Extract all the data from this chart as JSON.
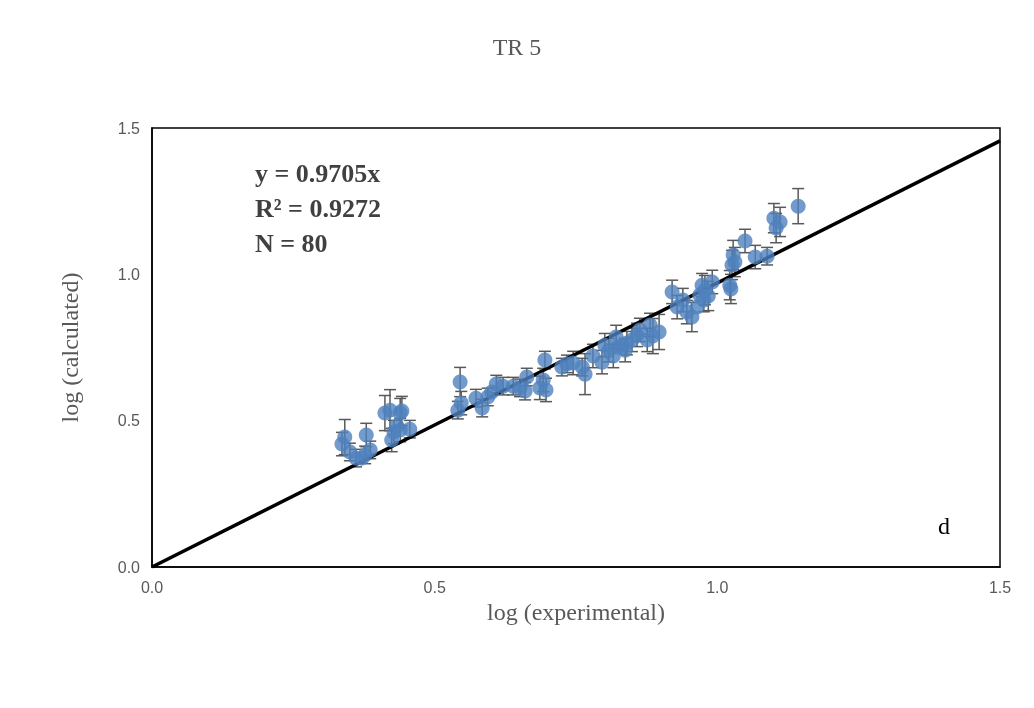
{
  "chart_data": {
    "type": "scatter",
    "title": "TR 5",
    "xlabel": "log (experimental)",
    "ylabel": "log (calculated)",
    "xlim": [
      0,
      1.5
    ],
    "ylim": [
      0,
      1.5
    ],
    "xticks": [
      {
        "value": 0,
        "label": "0.0"
      },
      {
        "value": 0.5,
        "label": "0.5"
      },
      {
        "value": 1,
        "label": "1.0"
      },
      {
        "value": 1.5,
        "label": "1.5"
      }
    ],
    "yticks": [
      {
        "value": 0,
        "label": "0.0"
      },
      {
        "value": 0.5,
        "label": "0.5"
      },
      {
        "value": 1,
        "label": "1.0"
      },
      {
        "value": 1.5,
        "label": "1.5"
      }
    ],
    "grid": false,
    "marker": "circle",
    "annotations": [
      "y = 0.9705x",
      "R² = 0.9272",
      "N = 80",
      "d"
    ],
    "series": [
      {
        "color": "#4f81bd",
        "x": [
          0.336,
          0.341,
          0.35,
          0.361,
          0.371,
          0.377,
          0.379,
          0.386,
          0.412,
          0.421,
          0.428,
          0.433,
          0.439,
          0.439,
          0.442,
          0.456,
          0.424,
          0.545,
          0.547,
          0.541,
          0.573,
          0.584,
          0.594,
          0.601,
          0.609,
          0.621,
          0.639,
          0.651,
          0.66,
          0.663,
          0.686,
          0.692,
          0.695,
          0.697,
          0.725,
          0.734,
          0.745,
          0.761,
          0.766,
          0.78,
          0.796,
          0.801,
          0.808,
          0.816,
          0.821,
          0.824,
          0.832,
          0.837,
          0.84,
          0.849,
          0.858,
          0.863,
          0.876,
          0.881,
          0.886,
          0.897,
          0.92,
          0.929,
          0.939,
          0.946,
          0.955,
          0.964,
          0.969,
          0.973,
          0.976,
          0.978,
          0.984,
          0.991,
          1.022,
          1.024,
          1.026,
          1.028,
          1.031,
          1.049,
          1.067,
          1.088,
          1.1,
          1.104,
          1.111,
          1.143
        ],
        "values": [
          0.42,
          0.444,
          0.393,
          0.372,
          0.372,
          0.383,
          0.451,
          0.4,
          0.526,
          0.536,
          0.461,
          0.482,
          0.526,
          0.468,
          0.533,
          0.471,
          0.434,
          0.632,
          0.56,
          0.536,
          0.577,
          0.543,
          0.581,
          0.598,
          0.625,
          0.618,
          0.618,
          0.612,
          0.601,
          0.649,
          0.612,
          0.639,
          0.707,
          0.605,
          0.683,
          0.694,
          0.697,
          0.683,
          0.659,
          0.721,
          0.7,
          0.758,
          0.741,
          0.721,
          0.786,
          0.752,
          0.755,
          0.741,
          0.765,
          0.776,
          0.793,
          0.81,
          0.776,
          0.827,
          0.789,
          0.803,
          0.94,
          0.888,
          0.912,
          0.871,
          0.854,
          0.888,
          0.929,
          0.963,
          0.912,
          0.946,
          0.926,
          0.974,
          0.963,
          0.95,
          1.032,
          1.066,
          1.042,
          1.114,
          1.059,
          1.062,
          1.192,
          1.158,
          1.179,
          1.233
        ],
        "errors": [
          0.04,
          0.06,
          0.03,
          0.03,
          null,
          0.03,
          0.04,
          0.03,
          0.06,
          0.07,
          0.04,
          null,
          0.05,
          0.04,
          0.05,
          0.03,
          0.04,
          0.05,
          0.04,
          0.03,
          0.03,
          0.03,
          0.03,
          null,
          0.03,
          0.03,
          0.03,
          0.03,
          0.03,
          0.03,
          0.04,
          0.04,
          0.03,
          0.04,
          0.03,
          0.03,
          0.04,
          0.03,
          0.07,
          0.04,
          0.04,
          0.04,
          0.04,
          0.04,
          0.04,
          null,
          null,
          0.04,
          0.04,
          0.04,
          0.04,
          0.04,
          0.04,
          0.04,
          0.06,
          0.06,
          0.04,
          0.04,
          0.04,
          0.04,
          0.05,
          null,
          null,
          0.04,
          0.04,
          0.05,
          0.05,
          0.04,
          0.05,
          0.05,
          0.05,
          0.05,
          0.05,
          0.04,
          0.04,
          0.03,
          0.05,
          0.05,
          0.05,
          0.06
        ]
      },
      {
        "type": "line",
        "color": "#000000",
        "line_style": "solid",
        "marker": "none",
        "x": [
          0,
          1.5
        ],
        "values": [
          0,
          1.456
        ]
      }
    ]
  }
}
